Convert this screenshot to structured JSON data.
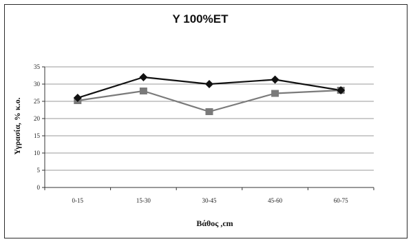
{
  "chart_data": {
    "type": "line",
    "title": "Y 100%ET",
    "xlabel": "Βάθος ,cm",
    "ylabel": "Υγρασία, % κ.ο.",
    "categories": [
      "0-15",
      "15-30",
      "30-45",
      "45-60",
      "60-75"
    ],
    "ylim": [
      0,
      35
    ],
    "yticks": [
      0,
      5,
      10,
      15,
      20,
      25,
      30,
      35
    ],
    "grid": true,
    "legend": "none",
    "series": [
      {
        "values": [
          26,
          32,
          30,
          31.3,
          28.2
        ],
        "color": "#111111",
        "marker": "diamond"
      },
      {
        "values": [
          25.2,
          28,
          22,
          27.3,
          28.2
        ],
        "color": "#7a7a7a",
        "marker": "square"
      }
    ]
  }
}
